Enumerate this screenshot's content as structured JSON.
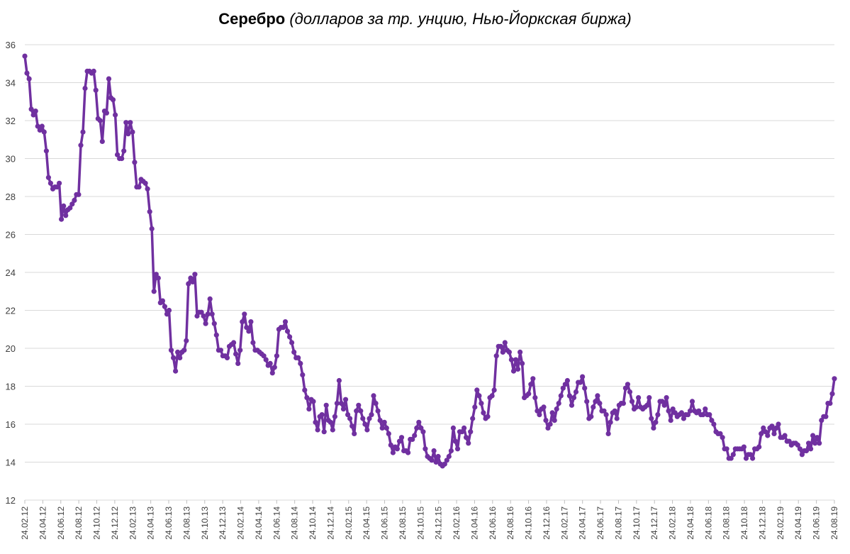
{
  "chart_data": {
    "type": "line",
    "title": "Серебро",
    "subtitle": "(долларов за тр. унцию, Нью-Йоркская биржа)",
    "xlabel": "",
    "ylabel": "",
    "ylim": [
      12,
      36
    ],
    "yticks": [
      12,
      14,
      16,
      18,
      20,
      22,
      24,
      26,
      28,
      30,
      32,
      34,
      36
    ],
    "xtick_labels": [
      "24.02.12",
      "24.04.12",
      "24.06.12",
      "24.08.12",
      "24.10.12",
      "24.12.12",
      "24.02.13",
      "24.04.13",
      "24.06.13",
      "24.08.13",
      "24.10.13",
      "24.12.13",
      "24.02.14",
      "24.04.14",
      "24.06.14",
      "24.08.14",
      "24.10.14",
      "24.12.14",
      "24.02.15",
      "24.04.15",
      "24.06.15",
      "24.08.15",
      "24.10.15",
      "24.12.15",
      "24.02.16",
      "24.04.16",
      "24.06.16",
      "24.08.16",
      "24.10.16",
      "24.12.16",
      "24.02.17",
      "24.04.17",
      "24.06.17",
      "24.08.17",
      "24.10.17",
      "24.12.17",
      "24.02.18",
      "24.04.18",
      "24.06.18",
      "24.08.18",
      "24.10.18",
      "24.12.18",
      "24.02.19",
      "24.04.19",
      "24.06.19",
      "24.08.19"
    ],
    "grid": true,
    "legend": "none",
    "color": "#7030a0",
    "series": [
      {
        "values": [
          35.4,
          34.5,
          34.2,
          32.6,
          32.3,
          32.5,
          31.7,
          31.5,
          31.7,
          31.4,
          30.4,
          29.0,
          28.7,
          28.4,
          28.5,
          28.5,
          28.7,
          26.8,
          27.5,
          27.0,
          27.3,
          27.4,
          27.6,
          27.8,
          28.1,
          28.1,
          30.7,
          31.4,
          33.7,
          34.6,
          34.6,
          34.5,
          34.6,
          33.6,
          32.1,
          32.0,
          30.9,
          32.5,
          32.4,
          34.2,
          33.2,
          33.1,
          32.3,
          30.2,
          30.0,
          30.0,
          30.4,
          31.9,
          31.3,
          31.9,
          31.4,
          29.8,
          28.5,
          28.5,
          28.9,
          28.8,
          28.7,
          28.4,
          27.2,
          26.3,
          23.0,
          23.9,
          23.7,
          22.4,
          22.5,
          22.2,
          21.8,
          22.0,
          19.9,
          19.5,
          18.8,
          19.8,
          19.5,
          19.8,
          19.9,
          20.4,
          23.4,
          23.7,
          23.5,
          23.9,
          21.7,
          21.9,
          21.9,
          21.7,
          21.3,
          21.8,
          22.6,
          21.8,
          21.3,
          20.7,
          19.9,
          19.9,
          19.6,
          19.6,
          19.5,
          20.1,
          20.2,
          20.3,
          19.7,
          19.2,
          19.9,
          21.4,
          21.8,
          21.1,
          20.9,
          21.4,
          20.3,
          19.9,
          19.9,
          19.8,
          19.7,
          19.6,
          19.4,
          19.1,
          19.2,
          18.7,
          19.0,
          19.6,
          21.0,
          21.1,
          21.1,
          21.4,
          20.9,
          20.6,
          20.3,
          19.8,
          19.5,
          19.5,
          19.2,
          18.6,
          17.8,
          17.4,
          16.8,
          17.3,
          17.2,
          16.1,
          15.7,
          16.4,
          16.5,
          15.6,
          17.0,
          16.2,
          16.1,
          15.7,
          16.4,
          17.1,
          18.3,
          17.1,
          16.8,
          17.3,
          16.5,
          16.3,
          15.9,
          15.5,
          16.7,
          17.0,
          16.7,
          16.3,
          16.0,
          15.7,
          16.3,
          16.5,
          17.5,
          17.1,
          16.7,
          16.2,
          15.8,
          16.1,
          15.8,
          15.5,
          14.9,
          14.5,
          14.8,
          14.7,
          15.1,
          15.3,
          14.6,
          14.6,
          14.5,
          15.2,
          15.2,
          15.4,
          15.8,
          16.1,
          15.8,
          15.6,
          14.7,
          14.3,
          14.2,
          14.1,
          14.6,
          14.0,
          14.3,
          13.9,
          13.8,
          13.9,
          14.1,
          14.3,
          14.6,
          15.8,
          15.1,
          14.7,
          15.6,
          15.6,
          15.8,
          15.3,
          15.0,
          15.6,
          16.3,
          16.9,
          17.8,
          17.5,
          17.1,
          16.6,
          16.3,
          16.4,
          17.4,
          17.5,
          17.8,
          19.6,
          20.1,
          20.1,
          19.8,
          20.3,
          19.9,
          19.8,
          19.4,
          18.8,
          19.4,
          18.9,
          19.8,
          19.2,
          17.4,
          17.5,
          17.6,
          18.1,
          18.4,
          17.4,
          16.7,
          16.5,
          16.8,
          16.9,
          16.2,
          15.8,
          16.0,
          16.6,
          16.2,
          16.8,
          17.1,
          17.5,
          17.9,
          18.1,
          18.3,
          17.5,
          17.0,
          17.4,
          17.7,
          18.2,
          18.2,
          18.5,
          17.9,
          17.2,
          16.3,
          16.4,
          16.9,
          17.2,
          17.5,
          17.1,
          16.7,
          16.7,
          16.5,
          15.5,
          16.1,
          16.6,
          16.7,
          16.3,
          17.0,
          17.1,
          17.1,
          17.9,
          18.1,
          17.7,
          17.2,
          16.8,
          16.9,
          17.4,
          16.9,
          16.8,
          16.9,
          17.0,
          17.4,
          16.3,
          15.8,
          16.1,
          16.5,
          17.2,
          17.2,
          17.0,
          17.4,
          16.7,
          16.2,
          16.8,
          16.6,
          16.4,
          16.5,
          16.6,
          16.3,
          16.5,
          16.5,
          16.7,
          17.2,
          16.7,
          16.6,
          16.7,
          16.5,
          16.5,
          16.8,
          16.5,
          16.5,
          16.2,
          16.0,
          15.6,
          15.5,
          15.5,
          15.3,
          14.7,
          14.7,
          14.2,
          14.2,
          14.4,
          14.7,
          14.7,
          14.7,
          14.7,
          14.8,
          14.2,
          14.4,
          14.4,
          14.2,
          14.7,
          14.7,
          14.8,
          15.5,
          15.8,
          15.6,
          15.4,
          15.8,
          15.9,
          15.5,
          15.8,
          16.0,
          15.3,
          15.3,
          15.4,
          15.1,
          15.1,
          14.9,
          15.0,
          15.0,
          14.9,
          14.7,
          14.4,
          14.6,
          14.6,
          15.0,
          14.7,
          15.4,
          15.0,
          15.3,
          15.0,
          16.2,
          16.4,
          16.4,
          17.1,
          17.1,
          17.6,
          18.4
        ]
      }
    ]
  }
}
